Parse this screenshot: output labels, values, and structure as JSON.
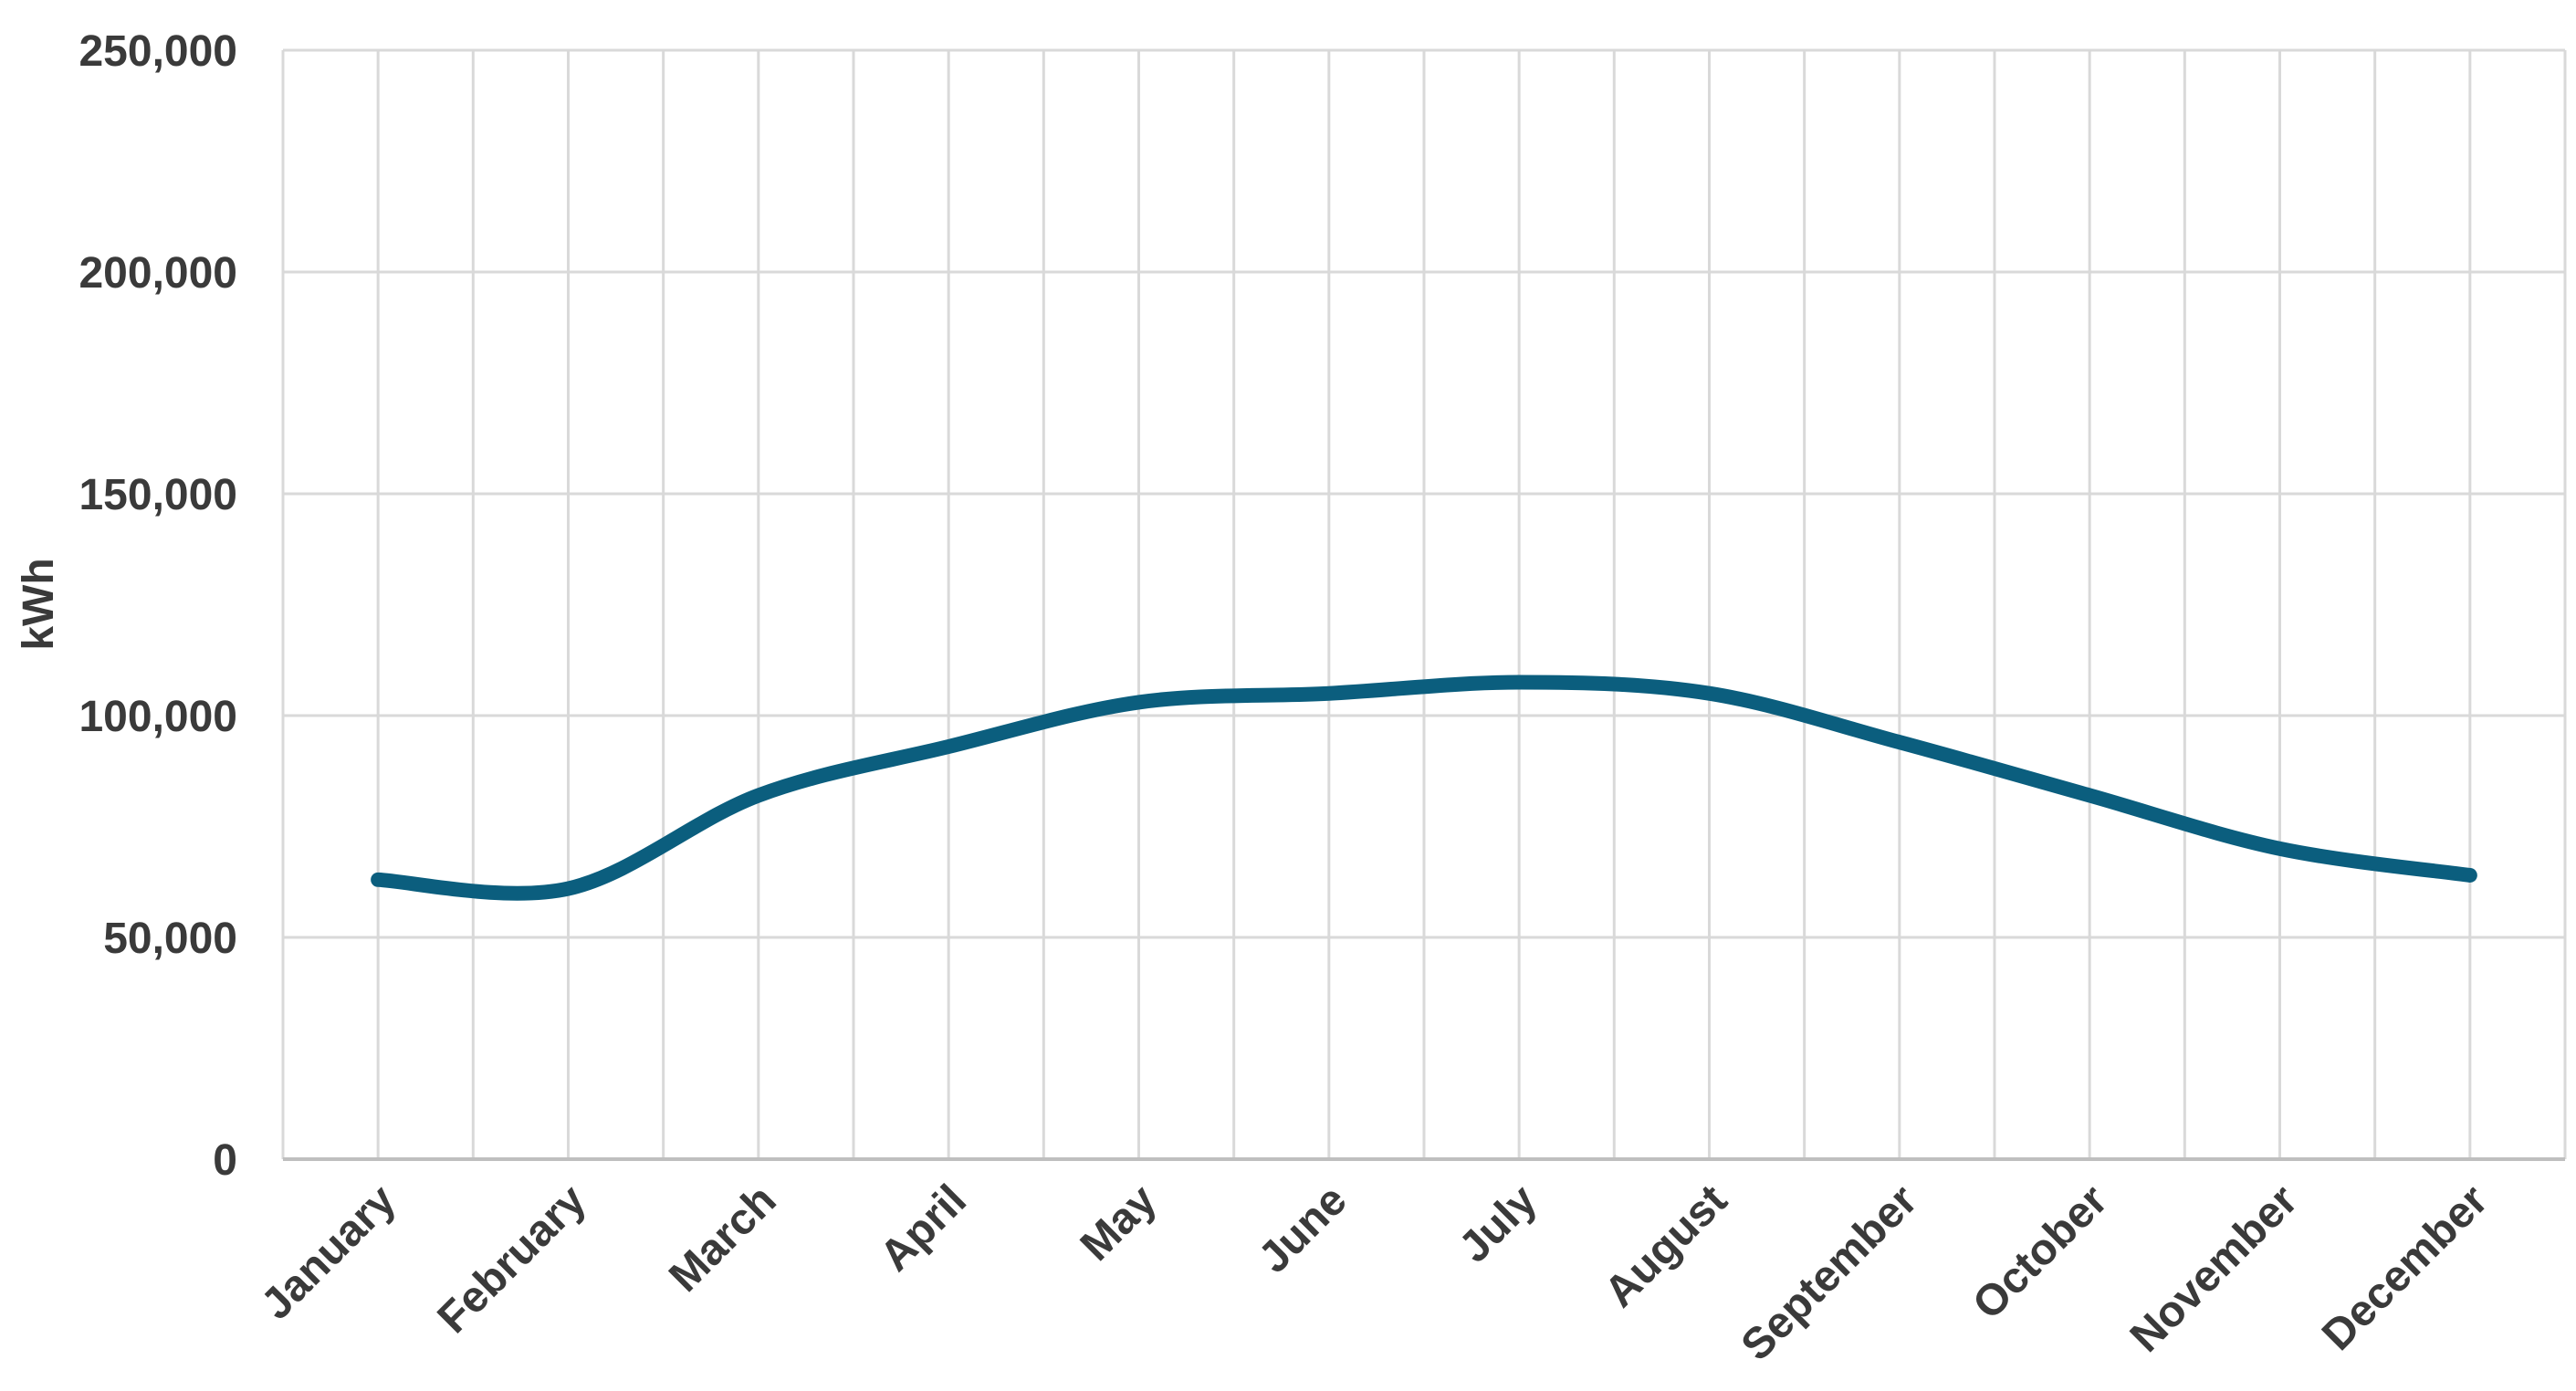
{
  "chart_data": {
    "type": "line",
    "title": "",
    "xlabel": "",
    "ylabel": "kWh",
    "categories": [
      "January",
      "February",
      "March",
      "April",
      "May",
      "June",
      "July",
      "August",
      "September",
      "October",
      "November",
      "December"
    ],
    "series": [
      {
        "values": [
          63000,
          61000,
          82000,
          93000,
          103000,
          105000,
          107500,
          105000,
          94000,
          82000,
          70000,
          64000
        ]
      }
    ],
    "ylim": [
      0,
      250000
    ],
    "yticks": [
      0,
      50000,
      100000,
      150000,
      200000,
      250000
    ],
    "ytick_labels": [
      "0",
      "50,000",
      "100,000",
      "150,000",
      "200,000",
      "250,000"
    ],
    "grid": true,
    "legend": "none",
    "colors": {
      "line": "#0b5e7e",
      "grid": "#d9d9d9",
      "axis": "#bfbfbf",
      "text": "#3a3a3a"
    }
  }
}
